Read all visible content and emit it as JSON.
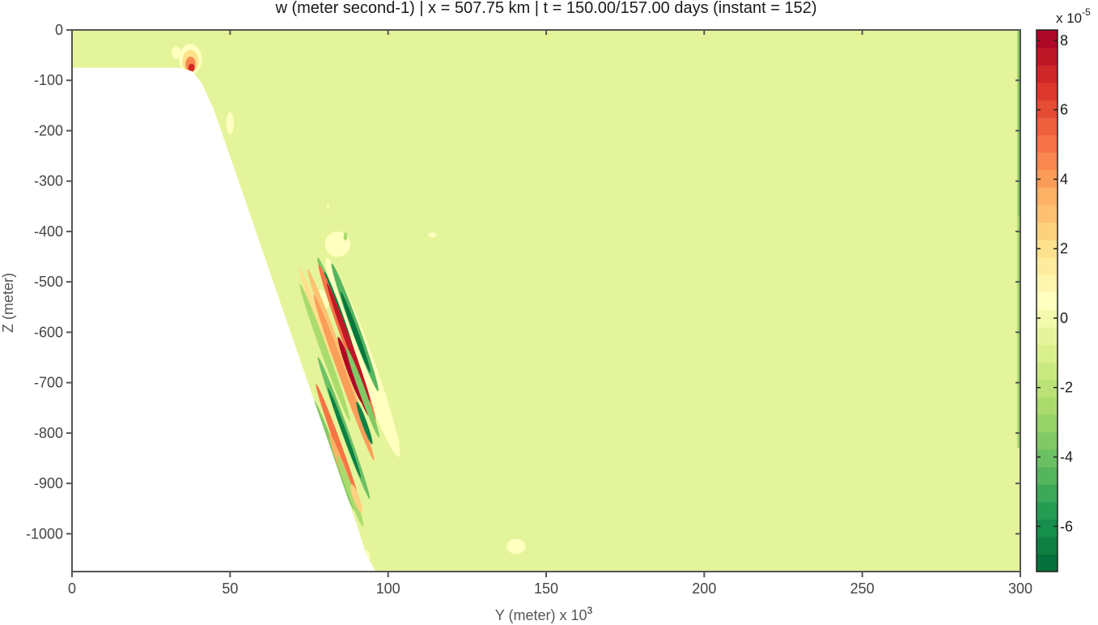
{
  "chart_data": {
    "type": "heatmap",
    "title": "w (meter second-1) | x = 507.75 km |  t = 150.00/157.00 days (instant = 152)",
    "xlabel": "Y (meter) x 10",
    "xlabel_exponent": "3",
    "ylabel": "Z (meter)",
    "xlim": [
      0,
      300
    ],
    "ylim": [
      -1075,
      0
    ],
    "x_ticks": [
      0,
      50,
      100,
      150,
      200,
      250,
      300
    ],
    "x_tick_labels": [
      "0",
      "50",
      "100",
      "150",
      "200",
      "250",
      "300"
    ],
    "y_ticks": [
      0,
      -100,
      -200,
      -300,
      -400,
      -500,
      -600,
      -700,
      -800,
      -900,
      -1000
    ],
    "y_tick_labels": [
      "0",
      "-100",
      "-200",
      "-300",
      "-400",
      "-500",
      "-600",
      "-700",
      "-800",
      "-900",
      "-1000"
    ],
    "grid": false,
    "colorbar": {
      "range": [
        -7.3,
        8.3
      ],
      "ticks": [
        8,
        6,
        4,
        2,
        0,
        -2,
        -4,
        -6
      ],
      "tick_labels": [
        "8",
        "6",
        "4",
        "2",
        "0",
        "-2",
        "-4",
        "-6"
      ],
      "multiplier": "x 10",
      "multiplier_exponent": "-5",
      "colors": [
        "#006837",
        "#1a9850",
        "#66bd63",
        "#a6d96a",
        "#d9ef8b",
        "#ffffbf",
        "#fee08b",
        "#fdae61",
        "#f46d43",
        "#d73027",
        "#a50026"
      ]
    },
    "background_value": -0.6,
    "bathymetry": [
      {
        "y": 0,
        "z": -75
      },
      {
        "y": 34,
        "z": -75
      },
      {
        "y": 38,
        "z": -82
      },
      {
        "y": 41,
        "z": -105
      },
      {
        "y": 45,
        "z": -160
      },
      {
        "y": 90,
        "z": -980
      },
      {
        "y": 93,
        "z": -1040
      },
      {
        "y": 96,
        "z": -1075
      },
      {
        "y": 0,
        "z": -1075
      }
    ],
    "wall_band": {
      "y_start": 299.0,
      "y_end": 300,
      "z_top": 0,
      "z_bottom": -830,
      "value": -2.6
    },
    "wall_band_strong": {
      "y_start": 299.2,
      "y_end": 300,
      "z_top": 0,
      "z_bottom": -370,
      "value": -3.3
    },
    "features": [
      {
        "y": 37.5,
        "z": -58,
        "a": 3.6,
        "b": 30,
        "rot": 0,
        "value": 0.5
      },
      {
        "y": 37.5,
        "z": -62,
        "a": 2.6,
        "b": 22,
        "rot": 0,
        "value": 2.0
      },
      {
        "y": 37.5,
        "z": -68,
        "a": 1.6,
        "b": 15,
        "rot": 0,
        "value": 4.5
      },
      {
        "y": 37.8,
        "z": -75,
        "a": 1.0,
        "b": 8,
        "rot": 0,
        "value": 7.0
      },
      {
        "y": 33.0,
        "z": -45,
        "a": 1.5,
        "b": 12,
        "rot": 0,
        "value": 0.5
      },
      {
        "y": 50.0,
        "z": -185,
        "a": 1.2,
        "b": 22,
        "rot": 0,
        "value": 0.5
      },
      {
        "y": 92.0,
        "z": -650,
        "a": 3.0,
        "b": 210,
        "rot": -20,
        "value": 0.5
      },
      {
        "y": 84.0,
        "z": -425,
        "a": 4.0,
        "b": 25,
        "rot": -20,
        "value": 0.5
      },
      {
        "y": 79.0,
        "z": -535,
        "a": 2.2,
        "b": 20,
        "rot": -20,
        "value": 0.5
      },
      {
        "y": 97.5,
        "z": -740,
        "a": 2.2,
        "b": 30,
        "rot": 0,
        "value": 0.5
      },
      {
        "y": 77.0,
        "z": -560,
        "a": 1.0,
        "b": 95,
        "rot": -20,
        "value": 2.0
      },
      {
        "y": 80.0,
        "z": -640,
        "a": 1.1,
        "b": 145,
        "rot": -20,
        "value": -2.5
      },
      {
        "y": 84.0,
        "z": -560,
        "a": 1.3,
        "b": 115,
        "rot": -20,
        "value": -3.5
      },
      {
        "y": 84.5,
        "z": -560,
        "a": 0.8,
        "b": 85,
        "rot": -20,
        "value": -6.5
      },
      {
        "y": 83.0,
        "z": -620,
        "a": 1.2,
        "b": 155,
        "rot": -20,
        "value": 3.0
      },
      {
        "y": 87.0,
        "z": -620,
        "a": 1.3,
        "b": 165,
        "rot": -20,
        "value": 5.0
      },
      {
        "y": 87.5,
        "z": -620,
        "a": 0.9,
        "b": 125,
        "rot": -20,
        "value": 7.5
      },
      {
        "y": 88.0,
        "z": -675,
        "a": 1.0,
        "b": 70,
        "rot": -20,
        "value": 8.0
      },
      {
        "y": 89.5,
        "z": -590,
        "a": 1.3,
        "b": 135,
        "rot": -20,
        "value": -4.5
      },
      {
        "y": 89.7,
        "z": -600,
        "a": 0.8,
        "b": 85,
        "rot": -20,
        "value": -6.8
      },
      {
        "y": 86.0,
        "z": -690,
        "a": 1.2,
        "b": 175,
        "rot": -20,
        "value": 4.0
      },
      {
        "y": 91.0,
        "z": -715,
        "a": 0.9,
        "b": 55,
        "rot": -20,
        "value": 8.0
      },
      {
        "y": 86.0,
        "z": -790,
        "a": 1.1,
        "b": 150,
        "rot": -20,
        "value": -4.0
      },
      {
        "y": 86.2,
        "z": -800,
        "a": 0.7,
        "b": 95,
        "rot": -20,
        "value": -6.5
      },
      {
        "y": 84.0,
        "z": -820,
        "a": 1.0,
        "b": 125,
        "rot": -20,
        "value": 5.0
      },
      {
        "y": 83.0,
        "z": -845,
        "a": 1.0,
        "b": 115,
        "rot": -20,
        "value": -3.5
      },
      {
        "y": 86.0,
        "z": -880,
        "a": 1.0,
        "b": 85,
        "rot": -20,
        "value": 3.5
      },
      {
        "y": 88.0,
        "z": -915,
        "a": 1.0,
        "b": 75,
        "rot": -20,
        "value": -2.5
      },
      {
        "y": 90.0,
        "z": -930,
        "a": 1.0,
        "b": 30,
        "rot": -20,
        "value": 2.5
      },
      {
        "y": 92.0,
        "z": -720,
        "a": 1.0,
        "b": 95,
        "rot": -20,
        "value": -3.5
      },
      {
        "y": 92.5,
        "z": -780,
        "a": 0.8,
        "b": 45,
        "rot": -20,
        "value": -6.5
      },
      {
        "y": 86.5,
        "z": -410,
        "a": 0.6,
        "b": 8,
        "rot": 0,
        "value": -2.5
      },
      {
        "y": 81.0,
        "z": -350,
        "a": 0.3,
        "b": 5,
        "rot": 0,
        "value": 0.5
      },
      {
        "y": 114.0,
        "z": -407,
        "a": 1.3,
        "b": 5,
        "rot": 0,
        "value": 0.5
      },
      {
        "y": 102.0,
        "z": -815,
        "a": 1.5,
        "b": 7,
        "rot": 0,
        "value": 0.5
      },
      {
        "y": 140.5,
        "z": -1025,
        "a": 3.0,
        "b": 15,
        "rot": 0,
        "value": 0.5
      },
      {
        "y": 89.0,
        "z": -1000,
        "a": 2.0,
        "b": 12,
        "rot": 0,
        "value": 0.5
      },
      {
        "y": 93.0,
        "z": -1045,
        "a": 1.2,
        "b": 12,
        "rot": 0,
        "value": 0.5
      }
    ]
  }
}
